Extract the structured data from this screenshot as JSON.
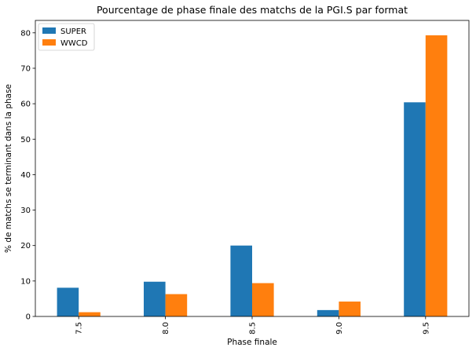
{
  "chart_data": {
    "type": "bar",
    "title": "Pourcentage de phase finale des matchs de la PGI.S par format",
    "xlabel": "Phase finale",
    "ylabel": "% de matchs se terminant dans la phase",
    "categories": [
      "7.5",
      "8.0",
      "8.5",
      "9.0",
      "9.5"
    ],
    "series": [
      {
        "name": "SUPER",
        "color": "#1f77b4",
        "values": [
          8.1,
          9.8,
          20.0,
          1.8,
          60.4
        ]
      },
      {
        "name": "WWCD",
        "color": "#ff7f0e",
        "values": [
          1.2,
          6.3,
          9.4,
          4.2,
          79.3
        ]
      }
    ],
    "ylim": [
      0,
      83.5
    ],
    "yticks": [
      "0",
      "10",
      "20",
      "30",
      "40",
      "50",
      "60",
      "70",
      "80"
    ],
    "xtick_rotation": "vertical",
    "grid": false,
    "legend": "top-left"
  }
}
